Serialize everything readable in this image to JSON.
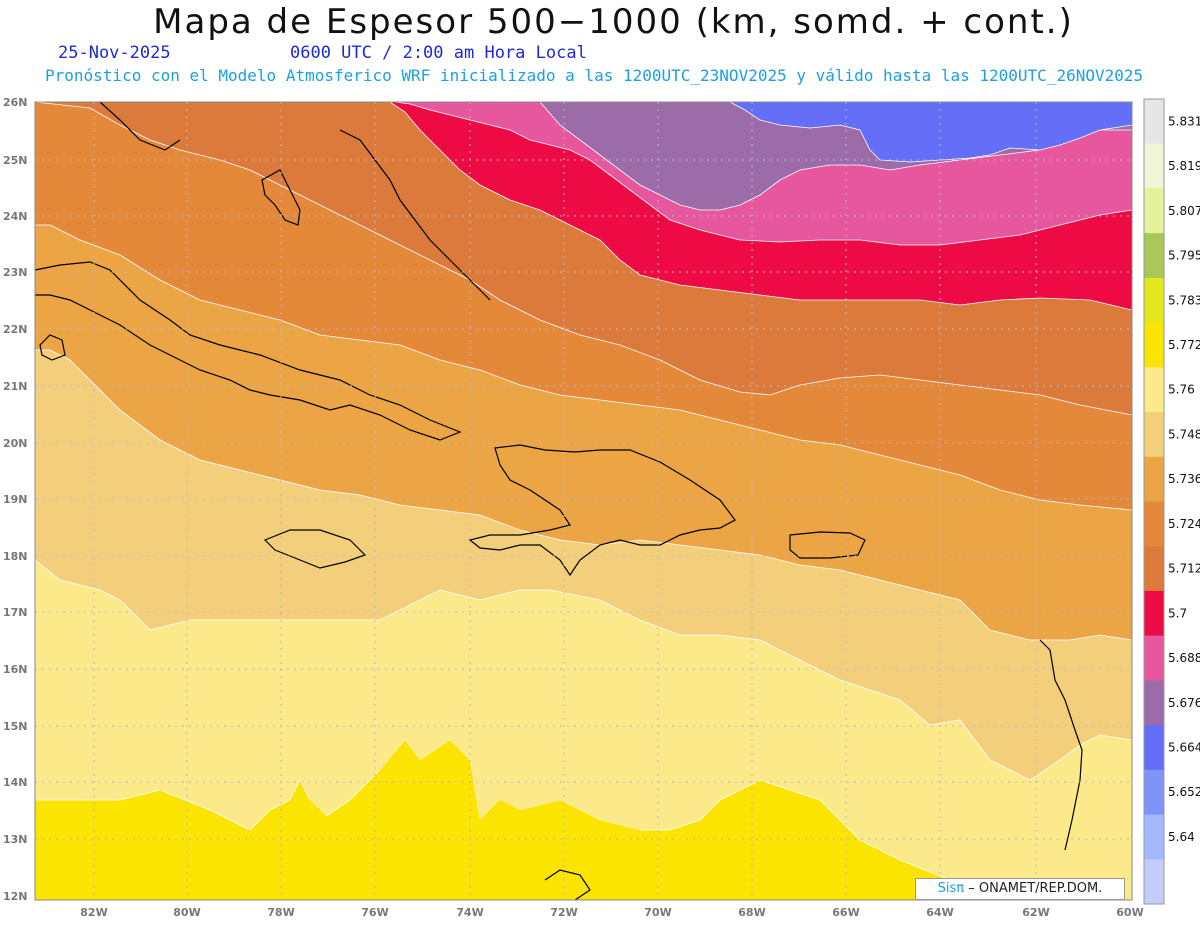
{
  "header": {
    "title": "Mapa de Espesor 500−1000 (km, somd. + cont.)",
    "date": "25-Nov-2025",
    "time": "0600 UTC / 2:00 am Hora Local",
    "subtitle": "Pronóstico con el Modelo Atmosferico WRF inicializado a las 1200UTC_23NOV2025 y válido hasta las  1200UTC_26NOV2025"
  },
  "axes": {
    "lat_labels": [
      "26N",
      "25N",
      "24N",
      "23N",
      "22N",
      "21N",
      "20N",
      "19N",
      "18N",
      "17N",
      "16N",
      "15N",
      "14N",
      "13N",
      "12N"
    ],
    "lon_labels": [
      "82W",
      "80W",
      "78W",
      "76W",
      "74W",
      "72W",
      "70W",
      "68W",
      "66W",
      "64W",
      "62W",
      "60W"
    ]
  },
  "colorbar": {
    "labels": [
      "5.831",
      "5.819",
      "5.807",
      "5.795",
      "5.783",
      "5.772",
      "5.76",
      "5.748",
      "5.736",
      "5.724",
      "5.712",
      "5.7",
      "5.688",
      "5.676",
      "5.664",
      "5.652",
      "5.64"
    ],
    "colors": [
      "#e6e6e6",
      "#f2f4d8",
      "#e5f29a",
      "#a8c85a",
      "#e2e81c",
      "#fbe500",
      "#fce98a",
      "#f3cf7c",
      "#eba545",
      "#e4893a",
      "#db7a3a",
      "#ee0a44",
      "#e6579e",
      "#9b6ca8",
      "#646ef7",
      "#7f93fb",
      "#a3b8fd",
      "#c4ccfc"
    ]
  },
  "credit": {
    "brand": "Sisπ",
    "text": "– ONAMET/REP.DOM."
  },
  "colors": {
    "title": "#111111",
    "date_text": "#1b2bd6",
    "subtitle_text": "#1aa0e6"
  }
}
